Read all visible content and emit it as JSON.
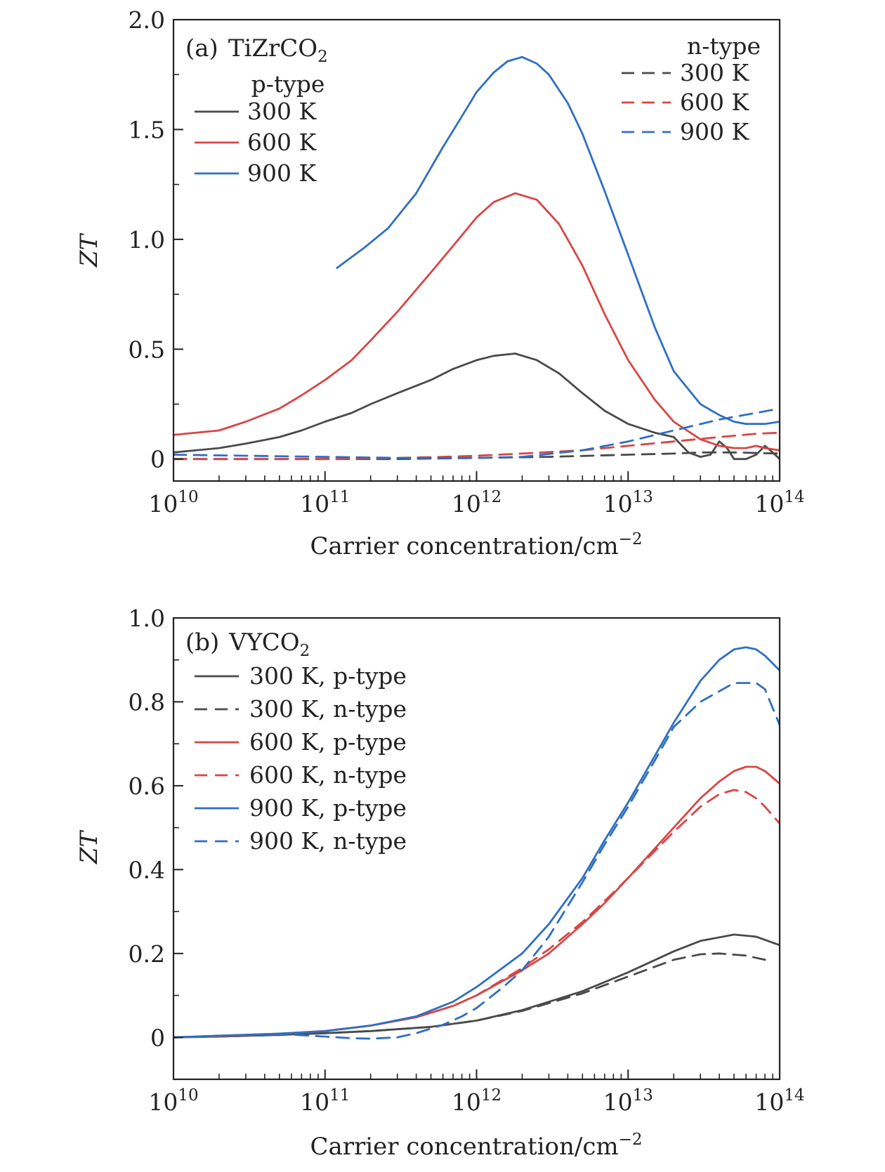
{
  "chart_data": [
    {
      "id": "a",
      "type": "line",
      "panel_label": "(a)",
      "material": "TiZrCO",
      "material_sub": "2",
      "xlabel": "Carrier concentration/cm",
      "xlabel_sup": "−2",
      "ylabel": "ZT",
      "xscale": "log",
      "xlim": [
        10000000000.0,
        100000000000000.0
      ],
      "ylim": [
        -0.1,
        2.0
      ],
      "x_ticks": [
        {
          "base": "10",
          "exp": "10",
          "value": 10000000000.0
        },
        {
          "base": "10",
          "exp": "11",
          "value": 100000000000.0
        },
        {
          "base": "10",
          "exp": "12",
          "value": 1000000000000.0
        },
        {
          "base": "10",
          "exp": "13",
          "value": 10000000000000.0
        },
        {
          "base": "10",
          "exp": "14",
          "value": 100000000000000.0
        }
      ],
      "y_ticks": [
        {
          "label": "0",
          "value": 0
        },
        {
          "label": "0.5",
          "value": 0.5
        },
        {
          "label": "1.0",
          "value": 1.0
        },
        {
          "label": "1.5",
          "value": 1.5
        },
        {
          "label": "2.0",
          "value": 2.0
        }
      ],
      "y_minor_step": 0.25,
      "legend_groups": [
        {
          "title": "p-type",
          "placement": "top-left",
          "items": [
            0,
            1,
            2
          ]
        },
        {
          "title": "n-type",
          "placement": "top-right",
          "items": [
            3,
            4,
            5
          ]
        }
      ],
      "series": [
        {
          "name": "300 K",
          "dopant": "p-type",
          "color": "#4a4a4a",
          "dash": false,
          "x": [
            10000000000.0,
            20000000000.0,
            30000000000.0,
            50000000000.0,
            70000000000.0,
            100000000000.0,
            150000000000.0,
            200000000000.0,
            300000000000.0,
            500000000000.0,
            700000000000.0,
            1000000000000.0,
            1300000000000.0,
            1800000000000.0,
            2500000000000.0,
            3500000000000.0,
            5000000000000.0,
            7000000000000.0,
            10000000000000.0,
            15000000000000.0,
            20000000000000.0,
            25000000000000.0,
            30000000000000.0,
            35000000000000.0,
            40000000000000.0,
            45000000000000.0,
            50000000000000.0,
            60000000000000.0,
            70000000000000.0,
            80000000000000.0,
            90000000000000.0,
            100000000000000.0
          ],
          "y": [
            0.03,
            0.05,
            0.07,
            0.1,
            0.13,
            0.17,
            0.21,
            0.25,
            0.3,
            0.36,
            0.41,
            0.45,
            0.47,
            0.48,
            0.45,
            0.39,
            0.3,
            0.22,
            0.16,
            0.12,
            0.1,
            0.03,
            0.01,
            0.02,
            0.08,
            0.05,
            0.0,
            0.0,
            0.02,
            0.06,
            0.03,
            0.0
          ]
        },
        {
          "name": "600 K",
          "dopant": "p-type",
          "color": "#d94545",
          "dash": false,
          "x": [
            10000000000.0,
            20000000000.0,
            30000000000.0,
            50000000000.0,
            70000000000.0,
            100000000000.0,
            150000000000.0,
            200000000000.0,
            300000000000.0,
            500000000000.0,
            700000000000.0,
            1000000000000.0,
            1300000000000.0,
            1800000000000.0,
            2500000000000.0,
            3500000000000.0,
            5000000000000.0,
            7000000000000.0,
            10000000000000.0,
            15000000000000.0,
            20000000000000.0,
            30000000000000.0,
            40000000000000.0,
            50000000000000.0,
            60000000000000.0,
            70000000000000.0,
            80000000000000.0,
            100000000000000.0
          ],
          "y": [
            0.11,
            0.13,
            0.17,
            0.23,
            0.29,
            0.36,
            0.45,
            0.54,
            0.67,
            0.85,
            0.97,
            1.1,
            1.17,
            1.21,
            1.18,
            1.07,
            0.88,
            0.66,
            0.45,
            0.27,
            0.17,
            0.09,
            0.06,
            0.05,
            0.05,
            0.06,
            0.05,
            0.04
          ]
        },
        {
          "name": "900 K",
          "dopant": "p-type",
          "color": "#2e6fc4",
          "dash": false,
          "x": [
            120000000000.0,
            180000000000.0,
            260000000000.0,
            400000000000.0,
            600000000000.0,
            800000000000.0,
            1000000000000.0,
            1300000000000.0,
            1600000000000.0,
            2000000000000.0,
            2500000000000.0,
            3000000000000.0,
            4000000000000.0,
            5000000000000.0,
            7000000000000.0,
            10000000000000.0,
            15000000000000.0,
            20000000000000.0,
            30000000000000.0,
            40000000000000.0,
            50000000000000.0,
            60000000000000.0,
            70000000000000.0,
            80000000000000.0,
            100000000000000.0
          ],
          "y": [
            0.87,
            0.96,
            1.05,
            1.21,
            1.42,
            1.56,
            1.67,
            1.76,
            1.81,
            1.83,
            1.8,
            1.75,
            1.62,
            1.48,
            1.22,
            0.93,
            0.6,
            0.4,
            0.25,
            0.2,
            0.17,
            0.16,
            0.16,
            0.16,
            0.17
          ]
        },
        {
          "name": "300 K",
          "dopant": "n-type",
          "color": "#4a4a4a",
          "dash": true,
          "x": [
            10000000000.0,
            30000000000.0,
            100000000000.0,
            300000000000.0,
            1000000000000.0,
            3000000000000.0,
            10000000000000.0,
            20000000000000.0,
            30000000000000.0,
            50000000000000.0,
            100000000000000.0
          ],
          "y": [
            0.0,
            0.0,
            0.0,
            0.0,
            0.005,
            0.01,
            0.02,
            0.025,
            0.03,
            0.03,
            0.025
          ]
        },
        {
          "name": "600 K",
          "dopant": "n-type",
          "color": "#d94545",
          "dash": true,
          "x": [
            10000000000.0,
            30000000000.0,
            100000000000.0,
            300000000000.0,
            600000000000.0,
            1000000000000.0,
            2000000000000.0,
            5000000000000.0,
            10000000000000.0,
            20000000000000.0,
            40000000000000.0,
            70000000000000.0,
            100000000000000.0
          ],
          "y": [
            0.0,
            0.0,
            0.0,
            0.005,
            0.01,
            0.015,
            0.025,
            0.04,
            0.06,
            0.08,
            0.1,
            0.115,
            0.12
          ]
        },
        {
          "name": "900 K",
          "dopant": "n-type",
          "color": "#2e6fc4",
          "dash": true,
          "x": [
            10000000000.0,
            30000000000.0,
            100000000000.0,
            300000000000.0,
            600000000000.0,
            1000000000000.0,
            2000000000000.0,
            5000000000000.0,
            10000000000000.0,
            20000000000000.0,
            40000000000000.0,
            70000000000000.0,
            100000000000000.0
          ],
          "y": [
            0.02,
            0.015,
            0.01,
            0.005,
            0.005,
            0.005,
            0.01,
            0.04,
            0.08,
            0.13,
            0.18,
            0.21,
            0.23
          ]
        }
      ]
    },
    {
      "id": "b",
      "type": "line",
      "panel_label": "(b)",
      "material": "VYCO",
      "material_sub": "2",
      "xlabel": "Carrier concentration/cm",
      "xlabel_sup": "−2",
      "ylabel": "ZT",
      "xscale": "log",
      "xlim": [
        10000000000.0,
        100000000000000.0
      ],
      "ylim": [
        -0.1,
        1.0
      ],
      "x_ticks": [
        {
          "base": "10",
          "exp": "10",
          "value": 10000000000.0
        },
        {
          "base": "10",
          "exp": "11",
          "value": 100000000000.0
        },
        {
          "base": "10",
          "exp": "12",
          "value": 1000000000000.0
        },
        {
          "base": "10",
          "exp": "13",
          "value": 10000000000000.0
        },
        {
          "base": "10",
          "exp": "14",
          "value": 100000000000000.0
        }
      ],
      "y_ticks": [
        {
          "label": "0",
          "value": 0
        },
        {
          "label": "0.2",
          "value": 0.2
        },
        {
          "label": "0.4",
          "value": 0.4
        },
        {
          "label": "0.6",
          "value": 0.6
        },
        {
          "label": "0.8",
          "value": 0.8
        },
        {
          "label": "1.0",
          "value": 1.0
        }
      ],
      "y_minor_step": 0.1,
      "legend_groups": [
        {
          "title": "",
          "placement": "top-left",
          "items": [
            0,
            1,
            2,
            3,
            4,
            5
          ]
        }
      ],
      "series": [
        {
          "name": "300 K, p-type",
          "color": "#4a4a4a",
          "dash": false,
          "x": [
            10000000000.0,
            20000000000.0,
            50000000000.0,
            100000000000.0,
            200000000000.0,
            500000000000.0,
            1000000000000.0,
            2000000000000.0,
            5000000000000.0,
            10000000000000.0,
            20000000000000.0,
            30000000000000.0,
            50000000000000.0,
            70000000000000.0,
            100000000000000.0
          ],
          "y": [
            0.0,
            0.002,
            0.006,
            0.01,
            0.015,
            0.025,
            0.04,
            0.065,
            0.11,
            0.155,
            0.205,
            0.23,
            0.245,
            0.24,
            0.22
          ]
        },
        {
          "name": "300 K, n-type",
          "color": "#4a4a4a",
          "dash": true,
          "x": [
            10000000000.0,
            20000000000.0,
            50000000000.0,
            100000000000.0,
            200000000000.0,
            500000000000.0,
            1000000000000.0,
            2000000000000.0,
            5000000000000.0,
            10000000000000.0,
            20000000000000.0,
            30000000000000.0,
            40000000000000.0,
            60000000000000.0,
            80000000000000.0
          ],
          "y": [
            0.0,
            0.002,
            0.006,
            0.01,
            0.015,
            0.025,
            0.04,
            0.063,
            0.105,
            0.145,
            0.185,
            0.198,
            0.2,
            0.195,
            0.185
          ]
        },
        {
          "name": "600 K, p-type",
          "color": "#d94545",
          "dash": false,
          "x": [
            10000000000.0,
            20000000000.0,
            50000000000.0,
            100000000000.0,
            200000000000.0,
            400000000000.0,
            700000000000.0,
            1000000000000.0,
            2000000000000.0,
            3000000000000.0,
            5000000000000.0,
            7000000000000.0,
            10000000000000.0,
            20000000000000.0,
            30000000000000.0,
            40000000000000.0,
            50000000000000.0,
            60000000000000.0,
            70000000000000.0,
            80000000000000.0,
            100000000000000.0
          ],
          "y": [
            0.0,
            0.003,
            0.008,
            0.015,
            0.028,
            0.048,
            0.075,
            0.1,
            0.16,
            0.2,
            0.27,
            0.32,
            0.38,
            0.5,
            0.57,
            0.61,
            0.635,
            0.645,
            0.645,
            0.635,
            0.605
          ]
        },
        {
          "name": "600 K, n-type",
          "color": "#d94545",
          "dash": true,
          "x": [
            10000000000.0,
            20000000000.0,
            50000000000.0,
            100000000000.0,
            200000000000.0,
            400000000000.0,
            700000000000.0,
            1000000000000.0,
            2000000000000.0,
            3000000000000.0,
            5000000000000.0,
            7000000000000.0,
            10000000000000.0,
            20000000000000.0,
            30000000000000.0,
            40000000000000.0,
            50000000000000.0,
            60000000000000.0,
            70000000000000.0,
            80000000000000.0,
            100000000000000.0
          ],
          "y": [
            0.0,
            0.003,
            0.008,
            0.015,
            0.028,
            0.048,
            0.075,
            0.1,
            0.165,
            0.21,
            0.275,
            0.325,
            0.38,
            0.49,
            0.55,
            0.58,
            0.59,
            0.585,
            0.57,
            0.55,
            0.51
          ]
        },
        {
          "name": "900 K, p-type",
          "color": "#2e6fc4",
          "dash": false,
          "x": [
            10000000000.0,
            20000000000.0,
            50000000000.0,
            100000000000.0,
            200000000000.0,
            400000000000.0,
            700000000000.0,
            1000000000000.0,
            2000000000000.0,
            3000000000000.0,
            5000000000000.0,
            7000000000000.0,
            10000000000000.0,
            20000000000000.0,
            30000000000000.0,
            40000000000000.0,
            50000000000000.0,
            60000000000000.0,
            70000000000000.0,
            80000000000000.0,
            100000000000000.0
          ],
          "y": [
            0.0,
            0.004,
            0.009,
            0.015,
            0.028,
            0.05,
            0.085,
            0.12,
            0.2,
            0.27,
            0.38,
            0.47,
            0.56,
            0.75,
            0.85,
            0.9,
            0.925,
            0.93,
            0.925,
            0.91,
            0.875
          ]
        },
        {
          "name": "900 K, n-type",
          "color": "#2e6fc4",
          "dash": true,
          "x": [
            10000000000.0,
            20000000000.0,
            50000000000.0,
            100000000000.0,
            150000000000.0,
            200000000000.0,
            300000000000.0,
            400000000000.0,
            600000000000.0,
            800000000000.0,
            1000000000000.0,
            1500000000000.0,
            2000000000000.0,
            3000000000000.0,
            5000000000000.0,
            7000000000000.0,
            10000000000000.0,
            15000000000000.0,
            20000000000000.0,
            30000000000000.0,
            50000000000000.0,
            70000000000000.0,
            80000000000000.0,
            100000000000000.0
          ],
          "y": [
            0.0,
            0.004,
            0.008,
            0.002,
            -0.002,
            -0.003,
            0.0,
            0.01,
            0.03,
            0.05,
            0.07,
            0.12,
            0.16,
            0.24,
            0.37,
            0.46,
            0.55,
            0.66,
            0.74,
            0.8,
            0.845,
            0.845,
            0.83,
            0.745
          ]
        }
      ]
    }
  ]
}
